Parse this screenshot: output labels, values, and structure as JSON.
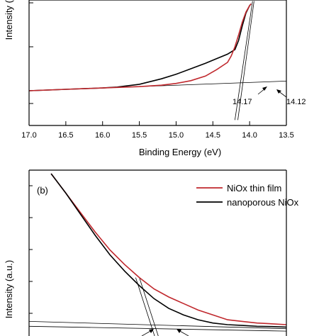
{
  "chart_data": [
    {
      "panel": "a",
      "type": "line",
      "xlabel": "Binding Energy (eV)",
      "ylabel": "Intensity (",
      "xlim": [
        17.0,
        13.5
      ],
      "x_ticks": [
        "17.0",
        "16.5",
        "16.0",
        "15.5",
        "15.0",
        "14.5",
        "14.0",
        "13.5"
      ],
      "x_tick_values": [
        17.0,
        16.5,
        16.0,
        15.5,
        15.0,
        14.5,
        14.0,
        13.5
      ],
      "ylim": [
        0,
        1
      ],
      "grid": false,
      "series": [
        {
          "color": "#000000",
          "x": [
            17.0,
            16.5,
            16.0,
            15.8,
            15.5,
            15.2,
            15.0,
            14.8,
            14.6,
            14.45,
            14.3,
            14.2,
            14.15,
            14.1,
            14.05,
            14.0,
            13.98
          ],
          "y": [
            0.07,
            0.085,
            0.1,
            0.11,
            0.14,
            0.2,
            0.25,
            0.31,
            0.37,
            0.42,
            0.47,
            0.52,
            0.62,
            0.78,
            0.92,
            1.0,
            1.02
          ]
        },
        {
          "color": "#c0282d",
          "x": [
            17.0,
            16.5,
            16.0,
            15.5,
            15.2,
            15.0,
            14.8,
            14.6,
            14.45,
            14.3,
            14.25,
            14.2,
            14.15,
            14.1,
            14.05,
            14.0,
            13.98
          ],
          "y": [
            0.07,
            0.085,
            0.1,
            0.115,
            0.13,
            0.15,
            0.18,
            0.23,
            0.3,
            0.38,
            0.45,
            0.55,
            0.68,
            0.82,
            0.93,
            1.0,
            1.02
          ]
        }
      ],
      "baseline_fit": {
        "x": [
          17.0,
          13.5
        ],
        "y": [
          0.07,
          0.175
        ]
      },
      "edge_fits": [
        {
          "x": [
            14.2,
            13.96
          ],
          "y": [
            -0.25,
            1.05
          ]
        },
        {
          "x": [
            14.16,
            13.94
          ],
          "y": [
            -0.25,
            1.05
          ]
        }
      ],
      "annotations": [
        {
          "text": "14.17",
          "x": 14.17
        },
        {
          "text": "14.12",
          "x": 14.12
        }
      ]
    },
    {
      "panel": "b",
      "type": "line",
      "panel_label": "(b)",
      "ylabel": "Intensity (a.u.)",
      "xlim": [
        17.0,
        13.5
      ],
      "ylim": [
        0,
        1
      ],
      "grid": false,
      "legend_position": "top-right",
      "series": [
        {
          "name": "NiOx thin film",
          "color": "#c0282d",
          "x": [
            16.7,
            16.5,
            16.3,
            16.1,
            15.9,
            15.7,
            15.5,
            15.3,
            15.1,
            14.9,
            14.7,
            14.5,
            14.3,
            14.1,
            13.9,
            13.7,
            13.5
          ],
          "y": [
            1.0,
            0.88,
            0.76,
            0.64,
            0.53,
            0.44,
            0.36,
            0.29,
            0.24,
            0.2,
            0.16,
            0.13,
            0.1,
            0.09,
            0.08,
            0.075,
            0.07
          ]
        },
        {
          "name": "nanoporous NiOx",
          "color": "#000000",
          "x": [
            16.7,
            16.5,
            16.3,
            16.1,
            15.9,
            15.7,
            15.5,
            15.3,
            15.1,
            14.9,
            14.7,
            14.5,
            14.3,
            14.1,
            13.9,
            13.7,
            13.5
          ],
          "y": [
            1.0,
            0.88,
            0.75,
            0.62,
            0.5,
            0.4,
            0.31,
            0.23,
            0.17,
            0.13,
            0.1,
            0.08,
            0.07,
            0.065,
            0.06,
            0.058,
            0.055
          ]
        }
      ],
      "baseline_fits": [
        {
          "x": [
            17.0,
            13.5
          ],
          "y": [
            0.09,
            0.045
          ]
        },
        {
          "x": [
            17.0,
            13.5
          ],
          "y": [
            0.06,
            0.03
          ]
        }
      ],
      "edge_fits": [
        {
          "x": [
            15.55,
            15.25
          ],
          "y": [
            0.36,
            -0.06
          ]
        },
        {
          "x": [
            15.5,
            15.2
          ],
          "y": [
            0.36,
            -0.06
          ]
        }
      ]
    }
  ]
}
